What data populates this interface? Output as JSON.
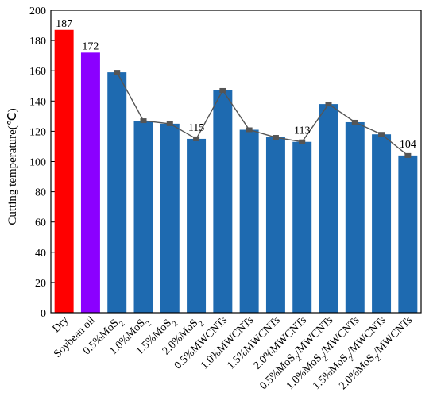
{
  "chart_data": {
    "type": "bar",
    "title": "",
    "xlabel": "",
    "ylabel": "Cutting temperature(℃)",
    "ylim": [
      0,
      200
    ],
    "yticks": [
      0,
      20,
      40,
      60,
      80,
      100,
      120,
      140,
      160,
      180,
      200
    ],
    "grid": false,
    "categories": [
      {
        "base": "Dry",
        "sub": ""
      },
      {
        "base": "Soybean oil",
        "sub": ""
      },
      {
        "base": "0.5%MoS",
        "sub": "2"
      },
      {
        "base": "1.0%MoS",
        "sub": "2"
      },
      {
        "base": "1.5%MoS",
        "sub": "2"
      },
      {
        "base": "2.0%MoS",
        "sub": "2"
      },
      {
        "base": "0.5%MWCNTs",
        "sub": ""
      },
      {
        "base": "1.0%MWCNTs",
        "sub": ""
      },
      {
        "base": "1.5%MWCNTs",
        "sub": ""
      },
      {
        "base": "2.0%MWCNTs",
        "sub": ""
      },
      {
        "base": "0.5%MoS",
        "sub": "2",
        "tail": "/MWCNTs"
      },
      {
        "base": "1.0%MoS",
        "sub": "2",
        "tail": "/MWCNTs"
      },
      {
        "base": "1.5%MoS",
        "sub": "2",
        "tail": "/MWCNTs"
      },
      {
        "base": "2.0%MoS",
        "sub": "2",
        "tail": "/MWCNTs"
      }
    ],
    "values": [
      187,
      172,
      159,
      127,
      125,
      115,
      147,
      121,
      116,
      113,
      138,
      126,
      118,
      104
    ],
    "bar_colors": [
      "#ff0000",
      "#8b00ff",
      "#1e6ab0",
      "#1e6ab0",
      "#1e6ab0",
      "#1e6ab0",
      "#1e6ab0",
      "#1e6ab0",
      "#1e6ab0",
      "#1e6ab0",
      "#1e6ab0",
      "#1e6ab0",
      "#1e6ab0",
      "#1e6ab0"
    ],
    "data_labels": [
      {
        "index": 0,
        "text": "187"
      },
      {
        "index": 1,
        "text": "172"
      },
      {
        "index": 5,
        "text": "115"
      },
      {
        "index": 9,
        "text": "113"
      },
      {
        "index": 13,
        "text": "104"
      }
    ],
    "trend_line_groups": [
      [
        2,
        3,
        4,
        5,
        6,
        7,
        8,
        9,
        10,
        11,
        12,
        13
      ]
    ],
    "trend_color": "#555555",
    "axis_color": "#000000"
  }
}
